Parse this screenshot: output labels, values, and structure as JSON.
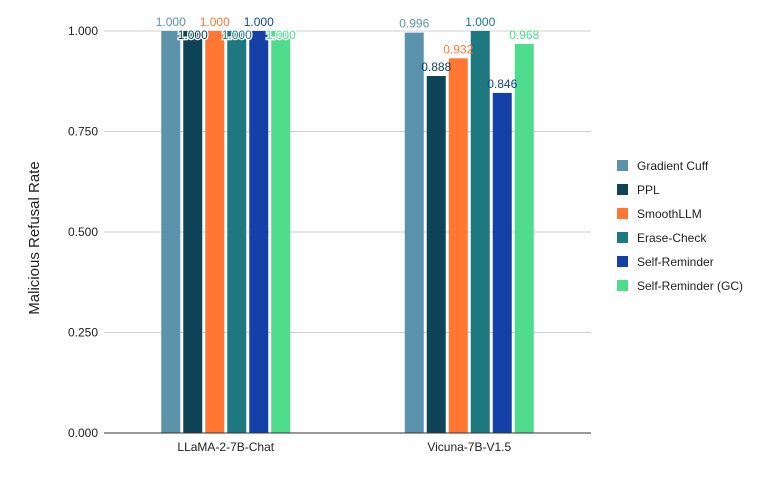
{
  "chart_data": {
    "type": "bar",
    "title": "",
    "xlabel": "",
    "ylabel": "Malicious Refusal Rate",
    "ylim": [
      0,
      1
    ],
    "yticks": [
      0,
      0.25,
      0.5,
      0.75,
      1.0
    ],
    "ytick_labels": [
      "0.000",
      "0.250",
      "0.500",
      "0.750",
      "1.000"
    ],
    "grid": true,
    "legend_position": "right",
    "categories": [
      "LLaMA-2-7B-Chat",
      "Vicuna-7B-V1.5"
    ],
    "series": [
      {
        "name": "Gradient Cuff",
        "color": "#5b93ad",
        "values": [
          1.0,
          0.996
        ],
        "labels": [
          "1.000",
          "0.996"
        ]
      },
      {
        "name": "PPL",
        "color": "#0e4358",
        "values": [
          1.0,
          0.888
        ],
        "labels": [
          "1.000",
          "0.888"
        ]
      },
      {
        "name": "SmoothLLM",
        "color": "#ff7733",
        "values": [
          1.0,
          0.932
        ],
        "labels": [
          "1.000",
          "0.932"
        ]
      },
      {
        "name": "Erase-Check",
        "color": "#1e7880",
        "values": [
          1.0,
          1.0
        ],
        "labels": [
          "1.000",
          "1.000"
        ]
      },
      {
        "name": "Self-Reminder",
        "color": "#1540a8",
        "values": [
          1.0,
          0.846
        ],
        "labels": [
          "1.000",
          "0.846"
        ]
      },
      {
        "name": "Self-Reminder (GC)",
        "color": "#4fdc8c",
        "values": [
          1.0,
          0.968
        ],
        "labels": [
          "1.000",
          "0.968"
        ]
      }
    ]
  }
}
